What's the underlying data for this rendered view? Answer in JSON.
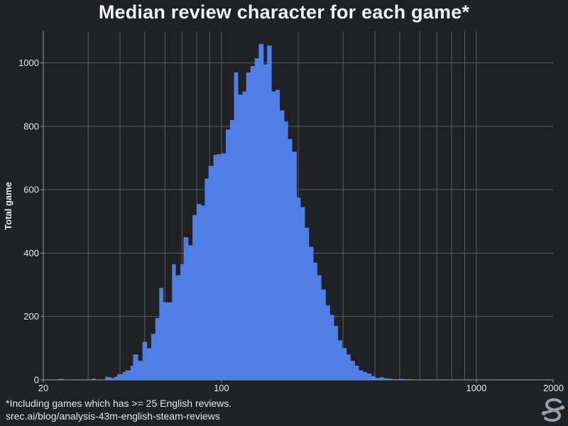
{
  "chart_data": {
    "type": "bar",
    "title": "Median review character for each game*",
    "xlabel": "",
    "ylabel": "Total game",
    "x_scale": "log",
    "xlim": [
      20,
      2000
    ],
    "ylim": [
      0,
      1100
    ],
    "x_ticks": [
      20,
      100,
      1000,
      2000
    ],
    "x_tick_labels": [
      "20",
      "100",
      "1000",
      "2000"
    ],
    "y_ticks": [
      0,
      200,
      400,
      600,
      800,
      1000
    ],
    "y_tick_labels": [
      "0",
      "200",
      "400",
      "600",
      "800",
      "1000"
    ],
    "grid": true,
    "bar_color": "#4f7fe6",
    "bin_edges": [
      22,
      23,
      24,
      25,
      26,
      27,
      28,
      29,
      30,
      31,
      32,
      33,
      34,
      35,
      36,
      37,
      38,
      39,
      41,
      42,
      44,
      45,
      47,
      49,
      51,
      53,
      55,
      57,
      59,
      61,
      64,
      66,
      69,
      71,
      74,
      77,
      80,
      83,
      86,
      89,
      93,
      96,
      100,
      104,
      108,
      112,
      116,
      121,
      125,
      130,
      135,
      140,
      146,
      151,
      157,
      163,
      169,
      176,
      182,
      189,
      197,
      204,
      212,
      220,
      229,
      237,
      246,
      256,
      266,
      276,
      286,
      297,
      309,
      320,
      333,
      345,
      359,
      372,
      387,
      401,
      417,
      433,
      450,
      467,
      485,
      503,
      523,
      543,
      564,
      585,
      608,
      631,
      655,
      681,
      707,
      734,
      762,
      791,
      822,
      853,
      886,
      920,
      955,
      992,
      1030,
      1070,
      1111,
      1153,
      1198,
      1244,
      1291,
      1341,
      1393,
      1446,
      1502,
      1560,
      1620,
      1682,
      1747,
      1814,
      1884,
      1956
    ],
    "values": [
      0,
      3,
      0,
      0,
      0,
      0,
      0,
      0,
      0,
      4,
      0,
      0,
      0,
      10,
      8,
      6,
      10,
      18,
      25,
      30,
      45,
      80,
      60,
      120,
      100,
      145,
      195,
      290,
      245,
      245,
      365,
      330,
      365,
      450,
      425,
      520,
      555,
      550,
      635,
      675,
      710,
      712,
      715,
      790,
      820,
      970,
      900,
      910,
      970,
      990,
      1015,
      1060,
      995,
      1055,
      910,
      915,
      850,
      815,
      760,
      720,
      575,
      545,
      480,
      420,
      370,
      330,
      285,
      235,
      205,
      170,
      125,
      100,
      80,
      60,
      45,
      30,
      25,
      20,
      12,
      6,
      8,
      5,
      4,
      2,
      2,
      3,
      2,
      2,
      1,
      0,
      0,
      0,
      0,
      0,
      0,
      0,
      0,
      0,
      0,
      0,
      0,
      0,
      0,
      0,
      0,
      0,
      0,
      0,
      0,
      0,
      0,
      0,
      0,
      0,
      0,
      0,
      0,
      0,
      0,
      0,
      0
    ]
  },
  "footnote_1": "*Including games which has >= 25 English reviews.",
  "footnote_2": "srec.ai/blog/analysis-43m-english-steam-reviews",
  "logo_icon": "srec-logo-icon",
  "colors": {
    "background": "#202124",
    "grid": "#5a5c60",
    "axis": "#9a9a9a",
    "text": "#e8e8e8",
    "bars": "#4f7fe6"
  }
}
